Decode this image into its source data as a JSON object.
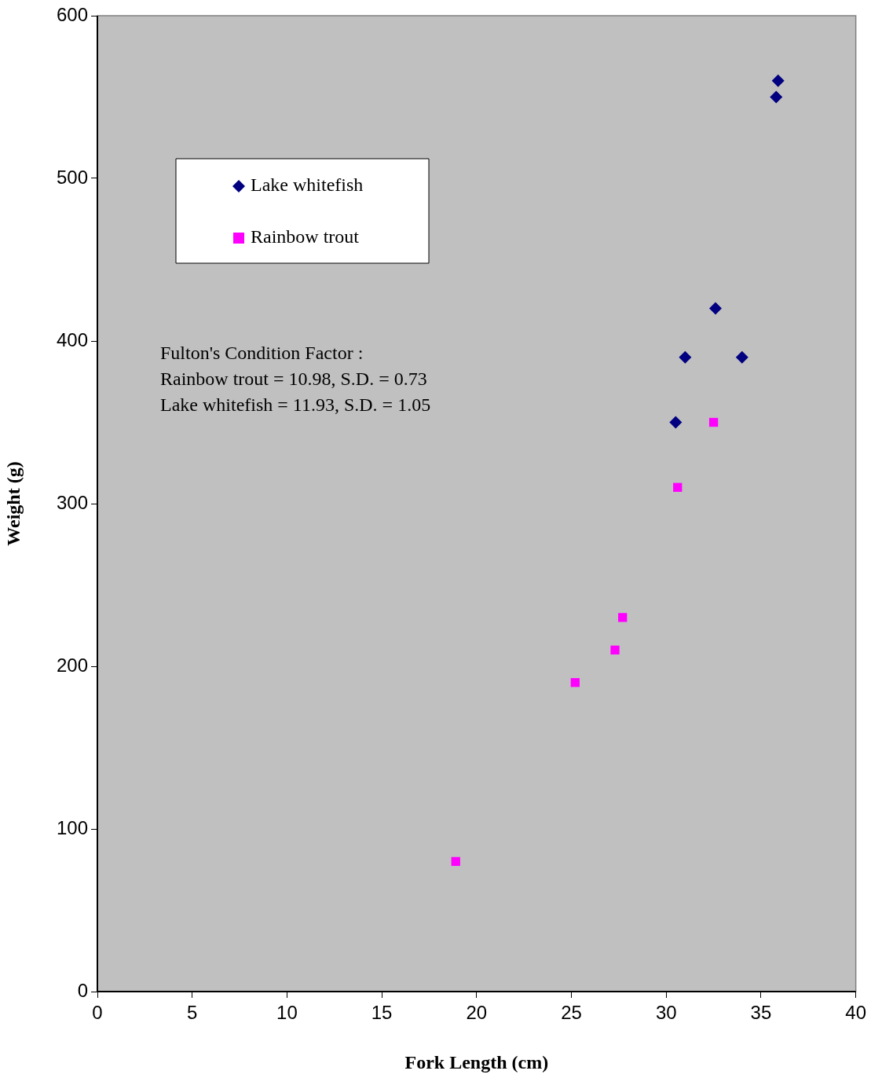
{
  "chart_data": {
    "type": "scatter",
    "xlabel": "Fork Length (cm)",
    "ylabel": "Weight (g)",
    "xlim": [
      0,
      40
    ],
    "xticks": [
      0,
      5,
      10,
      15,
      20,
      25,
      30,
      35,
      40
    ],
    "ylim": [
      0,
      600
    ],
    "yticks": [
      0,
      100,
      200,
      300,
      400,
      500,
      600
    ],
    "grid": false,
    "legend": "top left",
    "series": [
      {
        "name": "Lake whitefish",
        "color": "#000080",
        "marker": "diamond",
        "x": [
          30.5,
          31,
          32.6,
          34,
          35.8,
          35.9
        ],
        "values": [
          350,
          390,
          420,
          390,
          550,
          560
        ]
      },
      {
        "name": "Rainbow trout",
        "color": "#ff00ff",
        "marker": "square",
        "x": [
          18.9,
          25.2,
          27.3,
          27.7,
          30.6,
          32.5
        ],
        "values": [
          80,
          190,
          210,
          230,
          310,
          350
        ]
      }
    ],
    "annotations": [
      "Fulton's Condition Factor :",
      "Rainbow trout = 10.98, S.D. = 0.73",
      "Lake whitefish = 11.93, S.D. = 1.05"
    ]
  }
}
